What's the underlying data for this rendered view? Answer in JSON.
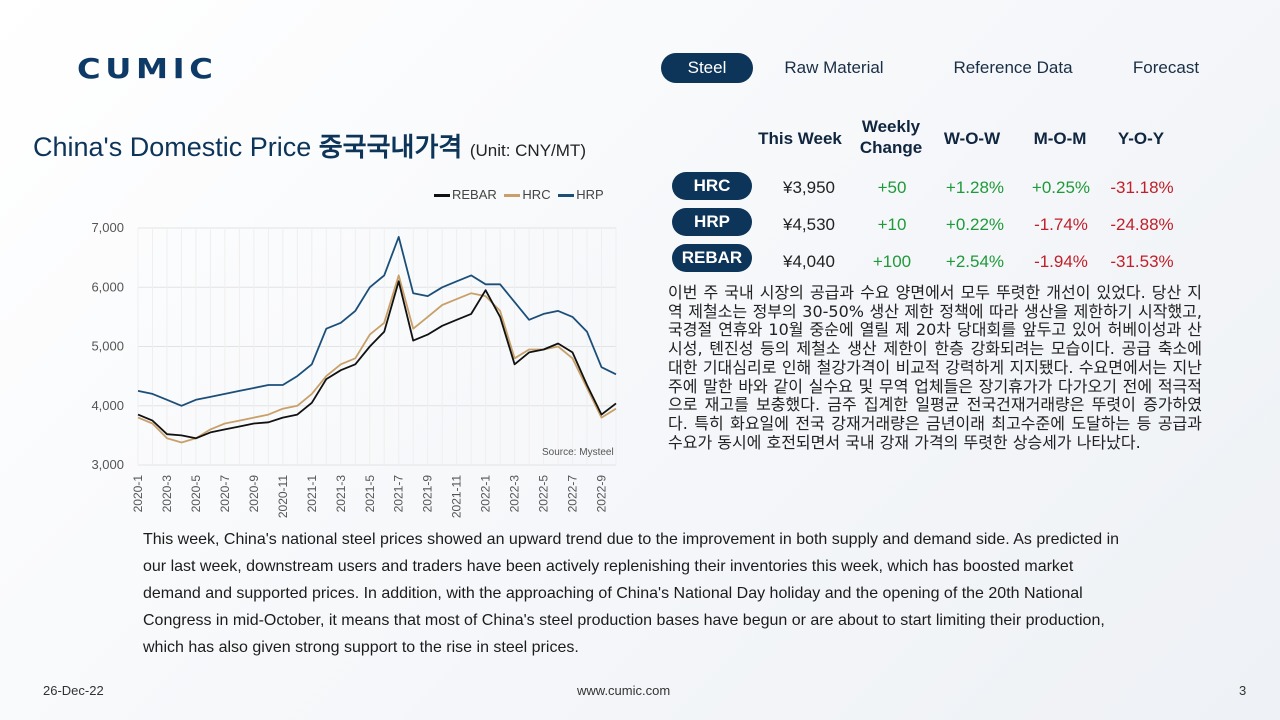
{
  "brand": {
    "logo_text": "CUMIC",
    "color": "#0d3a66"
  },
  "nav": {
    "items": [
      {
        "label": "Steel",
        "active": true
      },
      {
        "label": "Raw Material",
        "active": false
      },
      {
        "label": "Reference Data",
        "active": false
      },
      {
        "label": "Forecast",
        "active": false
      }
    ]
  },
  "title": {
    "en": "China's Domestic Price",
    "kr": "중국국내가격",
    "unit": "(Unit: CNY/MT)"
  },
  "table": {
    "headers": [
      "This Week",
      "Weekly Change",
      "W-O-W",
      "M-O-M",
      "Y-O-Y"
    ],
    "rows": [
      {
        "label": "HRC",
        "this_week": "¥3,950",
        "weekly_change": "+50",
        "wow": "+1.28%",
        "mom": "+0.25%",
        "yoy": "-31.18%"
      },
      {
        "label": "HRP",
        "this_week": "¥4,530",
        "weekly_change": "+10",
        "wow": "+0.22%",
        "mom": "-1.74%",
        "yoy": "-24.88%"
      },
      {
        "label": "REBAR",
        "this_week": "¥4,040",
        "weekly_change": "+100",
        "wow": "+2.54%",
        "mom": "-1.94%",
        "yoy": "-31.53%"
      }
    ]
  },
  "chart_data": {
    "type": "line",
    "ylim": [
      3000,
      7000
    ],
    "yticks": [
      "7,000",
      "6,000",
      "5,000",
      "4,000",
      "3,000"
    ],
    "xticks": [
      "2020-1",
      "2020-3",
      "2020-5",
      "2020-7",
      "2020-9",
      "2020-11",
      "2021-1",
      "2021-3",
      "2021-5",
      "2021-7",
      "2021-9",
      "2021-11",
      "2022-1",
      "2022-3",
      "2022-5",
      "2022-7",
      "2022-9"
    ],
    "xlim": [
      1,
      34
    ],
    "grid": true,
    "legend_position": "top",
    "source": "Source: Mysteel",
    "series": [
      {
        "name": "REBAR",
        "color": "#111111",
        "points": [
          [
            1,
            3850
          ],
          [
            2,
            3750
          ],
          [
            3,
            3520
          ],
          [
            4,
            3500
          ],
          [
            5,
            3450
          ],
          [
            6,
            3550
          ],
          [
            7,
            3600
          ],
          [
            8,
            3650
          ],
          [
            9,
            3700
          ],
          [
            10,
            3720
          ],
          [
            11,
            3800
          ],
          [
            12,
            3850
          ],
          [
            13,
            4050
          ],
          [
            14,
            4450
          ],
          [
            15,
            4600
          ],
          [
            16,
            4700
          ],
          [
            17,
            5000
          ],
          [
            18,
            5250
          ],
          [
            19,
            6100
          ],
          [
            20,
            5100
          ],
          [
            21,
            5200
          ],
          [
            22,
            5350
          ],
          [
            23,
            5450
          ],
          [
            24,
            5550
          ],
          [
            25,
            5950
          ],
          [
            26,
            5500
          ],
          [
            27,
            4700
          ],
          [
            28,
            4900
          ],
          [
            29,
            4950
          ],
          [
            30,
            5050
          ],
          [
            31,
            4900
          ],
          [
            32,
            4350
          ],
          [
            33,
            3850
          ],
          [
            34,
            4040
          ]
        ]
      },
      {
        "name": "HRC",
        "color": "#c8a06a",
        "points": [
          [
            1,
            3800
          ],
          [
            2,
            3700
          ],
          [
            3,
            3450
          ],
          [
            4,
            3380
          ],
          [
            5,
            3450
          ],
          [
            6,
            3600
          ],
          [
            7,
            3700
          ],
          [
            8,
            3750
          ],
          [
            9,
            3800
          ],
          [
            10,
            3850
          ],
          [
            11,
            3950
          ],
          [
            12,
            4000
          ],
          [
            13,
            4200
          ],
          [
            14,
            4500
          ],
          [
            15,
            4700
          ],
          [
            16,
            4800
          ],
          [
            17,
            5200
          ],
          [
            18,
            5400
          ],
          [
            19,
            6200
          ],
          [
            20,
            5300
          ],
          [
            21,
            5500
          ],
          [
            22,
            5700
          ],
          [
            23,
            5800
          ],
          [
            24,
            5900
          ],
          [
            25,
            5850
          ],
          [
            26,
            5600
          ],
          [
            27,
            4800
          ],
          [
            28,
            4950
          ],
          [
            29,
            4950
          ],
          [
            30,
            5000
          ],
          [
            31,
            4800
          ],
          [
            32,
            4300
          ],
          [
            33,
            3800
          ],
          [
            34,
            3950
          ]
        ]
      },
      {
        "name": "HRP",
        "color": "#1b4f7a",
        "points": [
          [
            1,
            4250
          ],
          [
            2,
            4200
          ],
          [
            3,
            4100
          ],
          [
            4,
            4000
          ],
          [
            5,
            4100
          ],
          [
            6,
            4150
          ],
          [
            7,
            4200
          ],
          [
            8,
            4250
          ],
          [
            9,
            4300
          ],
          [
            10,
            4350
          ],
          [
            11,
            4350
          ],
          [
            12,
            4500
          ],
          [
            13,
            4700
          ],
          [
            14,
            5300
          ],
          [
            15,
            5400
          ],
          [
            16,
            5600
          ],
          [
            17,
            6000
          ],
          [
            18,
            6200
          ],
          [
            19,
            6850
          ],
          [
            20,
            5900
          ],
          [
            21,
            5850
          ],
          [
            22,
            6000
          ],
          [
            23,
            6100
          ],
          [
            24,
            6200
          ],
          [
            25,
            6050
          ],
          [
            26,
            6050
          ],
          [
            27,
            5750
          ],
          [
            28,
            5450
          ],
          [
            29,
            5550
          ],
          [
            30,
            5600
          ],
          [
            31,
            5500
          ],
          [
            32,
            5250
          ],
          [
            33,
            4650
          ],
          [
            34,
            4530
          ]
        ]
      }
    ]
  },
  "kr_text": "이번 주 국내 시장의 공급과 수요 양면에서 모두 뚜렷한 개선이 있었다. 당산 지역 제철소는 정부의 30-50% 생산 제한 정책에 따라 생산을 제한하기 시작했고, 국경절 연휴와 10월 중순에 열릴 제 20차 당대회를 앞두고 있어 허베이성과 산시성, 톈진성 등의 제철소 생산 제한이 한층 강화되려는 모습이다. 공급 축소에 대한 기대심리로 인해 철강가격이 비교적 강력하게 지지됐다. 수요면에서는 지난주에 말한 바와 같이 실수요 및 무역 업체들은 장기휴가가 다가오기 전에 적극적으로 재고를 보충했다. 금주 집계한 일평균 전국건재거래량은 뚜렷이 증가하였다. 특히 화요일에 전국 강재거래량은 금년이래 최고수준에 도달하는 등 공급과 수요가 동시에 호전되면서 국내 강재 가격의 뚜렷한 상승세가 나타났다.",
  "en_text": "This week, China's national steel prices showed an upward trend due to the improvement in both supply and demand side.  As predicted in our last week, downstream users and traders have been actively replenishing their inventories this week, which has boosted market demand and supported prices. In addition, with the approaching of China's National Day holiday and the opening of the 20th National Congress in mid-October, it means that most of China's steel production bases have begun or are about to start limiting their production, which has also given strong support to the rise in steel prices.",
  "footer": {
    "date": "26-Dec-22",
    "url": "www.cumic.com",
    "page": "3"
  }
}
